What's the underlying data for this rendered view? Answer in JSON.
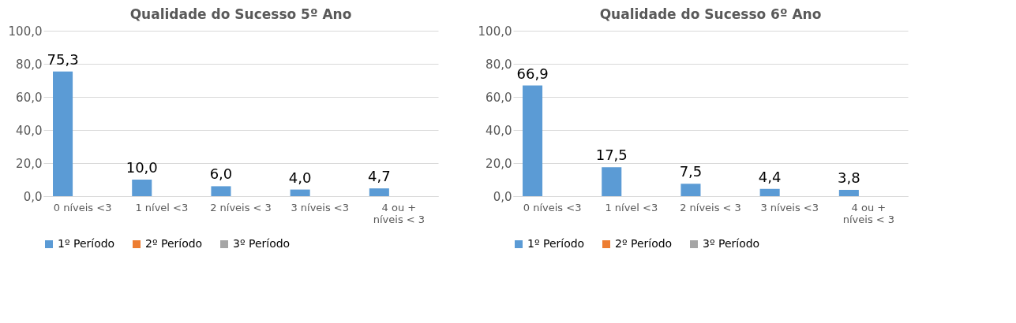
{
  "chart_data": [
    {
      "type": "bar",
      "title": "Qualidade do Sucesso 5º Ano",
      "categories": [
        "0 níveis <3",
        "1 nível <3",
        "2 níveis < 3",
        "3 níveis <3",
        "4 ou + níveis < 3"
      ],
      "series": [
        {
          "name": "1º Período",
          "color": "#5b9bd5",
          "values": [
            75.3,
            10.0,
            6.0,
            4.0,
            4.7
          ],
          "value_labels": [
            "75,3",
            "10,0",
            "6,0",
            "4,0",
            "4,7"
          ]
        },
        {
          "name": "2º Período",
          "color": "#ed7d31",
          "values": [
            null,
            null,
            null,
            null,
            null
          ]
        },
        {
          "name": "3º Período",
          "color": "#a5a5a5",
          "values": [
            null,
            null,
            null,
            null,
            null
          ]
        }
      ],
      "ylim": [
        0,
        100
      ],
      "yticks": [
        {
          "value": 0,
          "label": "0,0"
        },
        {
          "value": 20,
          "label": "20,0"
        },
        {
          "value": 40,
          "label": "40,0"
        },
        {
          "value": 60,
          "label": "60,0"
        },
        {
          "value": 80,
          "label": "80,0"
        },
        {
          "value": 100,
          "label": "100,0"
        }
      ],
      "grid": "y",
      "legend": "bottom"
    },
    {
      "type": "bar",
      "title": "Qualidade do Sucesso 6º Ano",
      "categories": [
        "0 níveis <3",
        "1 nível <3",
        "2 níveis < 3",
        "3 níveis <3",
        "4 ou + níveis < 3"
      ],
      "series": [
        {
          "name": "1º Período",
          "color": "#5b9bd5",
          "values": [
            66.9,
            17.5,
            7.5,
            4.4,
            3.8
          ],
          "value_labels": [
            "66,9",
            "17,5",
            "7,5",
            "4,4",
            "3,8"
          ]
        },
        {
          "name": "2º Período",
          "color": "#ed7d31",
          "values": [
            null,
            null,
            null,
            null,
            null
          ]
        },
        {
          "name": "3º Período",
          "color": "#a5a5a5",
          "values": [
            null,
            null,
            null,
            null,
            null
          ]
        }
      ],
      "ylim": [
        0,
        100
      ],
      "yticks": [
        {
          "value": 0,
          "label": "0,0"
        },
        {
          "value": 20,
          "label": "20,0"
        },
        {
          "value": 40,
          "label": "40,0"
        },
        {
          "value": 60,
          "label": "60,0"
        },
        {
          "value": 80,
          "label": "80,0"
        },
        {
          "value": 100,
          "label": "100,0"
        }
      ],
      "grid": "y",
      "legend": "bottom"
    }
  ]
}
